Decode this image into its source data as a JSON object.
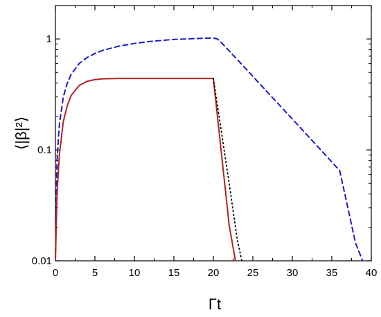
{
  "chart_data": {
    "type": "line",
    "xlabel": "Γt",
    "ylabel": "⟨|β|²⟩",
    "xlim": [
      0,
      40
    ],
    "ylim": [
      0.01,
      2.0
    ],
    "yscale": "log",
    "x_ticks": [
      "0",
      "5",
      "10",
      "15",
      "20",
      "25",
      "30",
      "35",
      "40"
    ],
    "y_ticks": [
      "0.01",
      "0.1",
      "1"
    ],
    "series": [
      {
        "style": "dashed",
        "color": "#1a1acc",
        "x": [
          0,
          0.2,
          0.5,
          1,
          1.5,
          2,
          3,
          4,
          5,
          6,
          8,
          10,
          12,
          15,
          18,
          20,
          20.5,
          21,
          22,
          24,
          26,
          28,
          30,
          32,
          34,
          36,
          38,
          38.9
        ],
        "y": [
          0.01,
          0.08,
          0.17,
          0.3,
          0.4,
          0.48,
          0.6,
          0.68,
          0.74,
          0.79,
          0.86,
          0.91,
          0.95,
          0.99,
          1.01,
          1.02,
          1.0,
          0.93,
          0.78,
          0.55,
          0.385,
          0.27,
          0.19,
          0.133,
          0.093,
          0.065,
          0.0145,
          0.01
        ]
      },
      {
        "style": "solid",
        "color": "#b22222",
        "x": [
          0,
          0.2,
          0.5,
          1,
          1.5,
          2,
          3,
          4,
          5,
          6,
          8,
          10,
          15,
          20,
          22,
          22.8
        ],
        "y": [
          0.01,
          0.04,
          0.09,
          0.18,
          0.25,
          0.31,
          0.38,
          0.415,
          0.43,
          0.437,
          0.44,
          0.44,
          0.44,
          0.44,
          0.021,
          0.01
        ]
      },
      {
        "style": "dotted",
        "color": "#000000",
        "x": [
          20,
          22,
          23,
          23.6
        ],
        "y": [
          0.44,
          0.05,
          0.016,
          0.01
        ]
      }
    ]
  }
}
